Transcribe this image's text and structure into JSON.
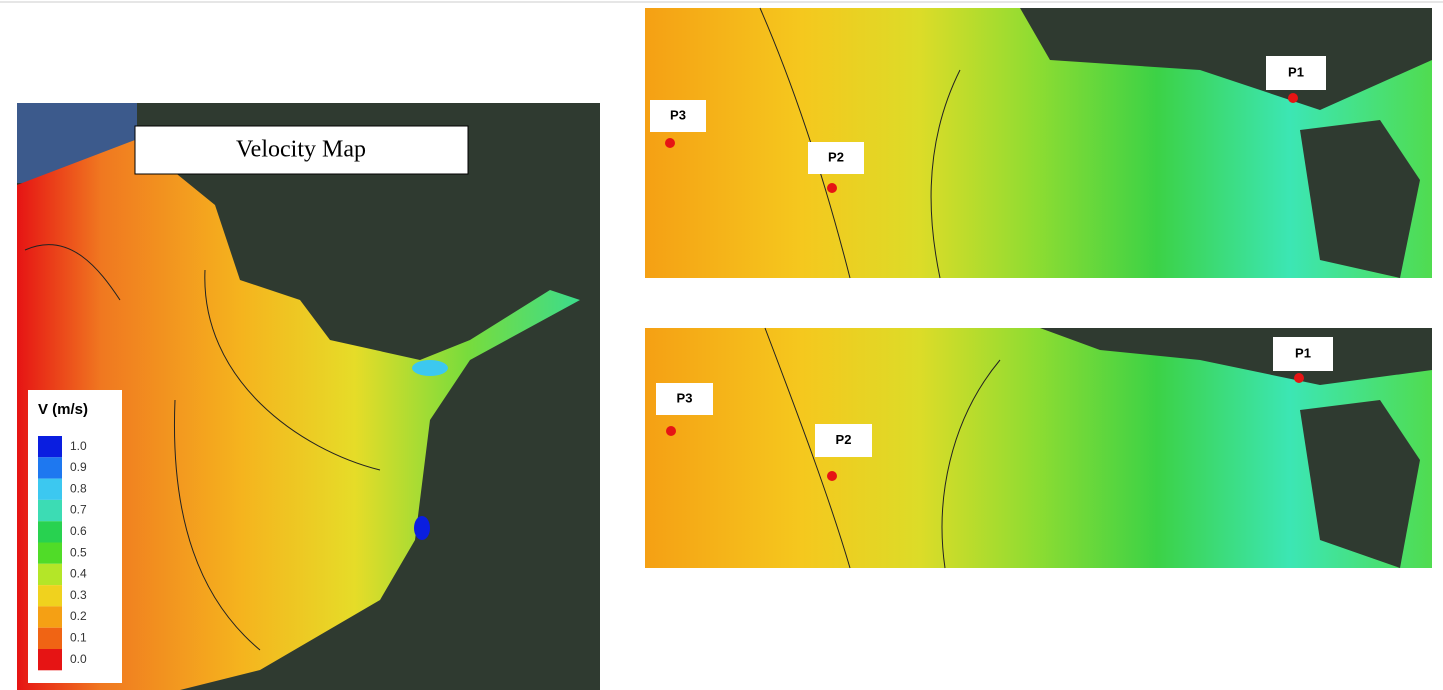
{
  "title": "Velocity Map",
  "legend": {
    "title": "V (m/s)",
    "ticks": [
      {
        "value": 1,
        "label": "1.0"
      },
      {
        "value": 0.9,
        "label": "0.9"
      },
      {
        "value": 0.8,
        "label": "0.8"
      },
      {
        "value": 0.7,
        "label": "0.7"
      },
      {
        "value": 0.6,
        "label": "0.6"
      },
      {
        "value": 0.5,
        "label": "0.5"
      },
      {
        "value": 0.4,
        "label": "0.4"
      },
      {
        "value": 0.3,
        "label": "0.3"
      },
      {
        "value": 0.2,
        "label": "0.2"
      },
      {
        "value": 0.1,
        "label": "0.1"
      },
      {
        "value": 0,
        "label": "0.0"
      }
    ],
    "colors": [
      "#0a1ee0",
      "#1e78f0",
      "#3cc8f0",
      "#3cdcb4",
      "#28d250",
      "#50dc28",
      "#b4e628",
      "#f0d21e",
      "#f5a014",
      "#f06414",
      "#e61414"
    ]
  },
  "panels": [
    {
      "points": [
        {
          "label": "P3"
        },
        {
          "label": "P2"
        },
        {
          "label": "P1"
        }
      ]
    },
    {
      "points": [
        {
          "label": "P3"
        },
        {
          "label": "P2"
        },
        {
          "label": "P1"
        }
      ]
    }
  ]
}
